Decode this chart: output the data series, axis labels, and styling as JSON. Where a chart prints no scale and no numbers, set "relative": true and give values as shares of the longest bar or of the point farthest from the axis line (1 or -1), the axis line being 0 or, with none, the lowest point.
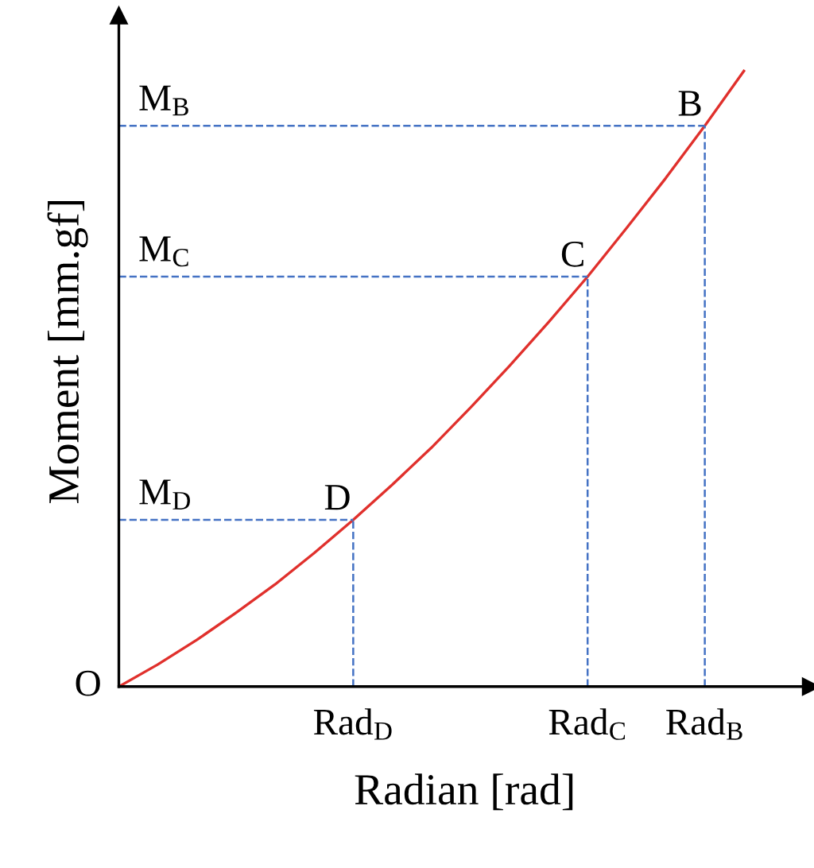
{
  "chart_data": {
    "type": "line",
    "relative": true,
    "xlabel": "Radian [rad]",
    "ylabel": "Moment [mm.gf]",
    "categories": [
      null,
      null,
      null,
      null,
      null,
      null,
      "Rad$_{D}$",
      null,
      null,
      null,
      null,
      null,
      "Rad$_{C}$",
      null,
      null,
      "Rad$_{B}$",
      null
    ],
    "series": [
      {
        "color": "#e0302c",
        "values": [
          0,
          0.036,
          0.076,
          0.12,
          0.166,
          0.217,
          0.271,
          0.328,
          0.388,
          0.453,
          0.521,
          0.592,
          0.666,
          0.745,
          0.826,
          0.911,
          1
        ]
      }
    ],
    "tick_labels": "x",
    "marker": "none",
    "line_style": "solid",
    "ref_lines": [
      {
        "axis": "y",
        "value": 0.911,
        "label": "M$_{B}$",
        "color": "#4472c4",
        "line_style": "dashed"
      },
      {
        "axis": "y",
        "value": 0.666,
        "label": "M$_{C}$",
        "color": "#4472c4",
        "line_style": "dashed"
      },
      {
        "axis": "y",
        "value": 0.271,
        "label": "M$_{D}$",
        "color": "#4472c4",
        "line_style": "dashed"
      },
      {
        "axis": "x",
        "value": "Rad$_{D}$",
        "color": "#4472c4",
        "line_style": "dashed"
      },
      {
        "axis": "x",
        "value": "Rad$_{C}$",
        "color": "#4472c4",
        "line_style": "dashed"
      },
      {
        "axis": "x",
        "value": "Rad$_{B}$",
        "color": "#4472c4",
        "line_style": "dashed"
      }
    ],
    "annotations": [
      "O",
      {
        "text": "D",
        "x": "Rad$_{D}$",
        "y": 0.271
      },
      {
        "text": "C",
        "x": "Rad$_{C}$",
        "y": 0.666
      },
      {
        "text": "B",
        "x": "Rad$_{B}$",
        "y": 0.911
      }
    ]
  }
}
